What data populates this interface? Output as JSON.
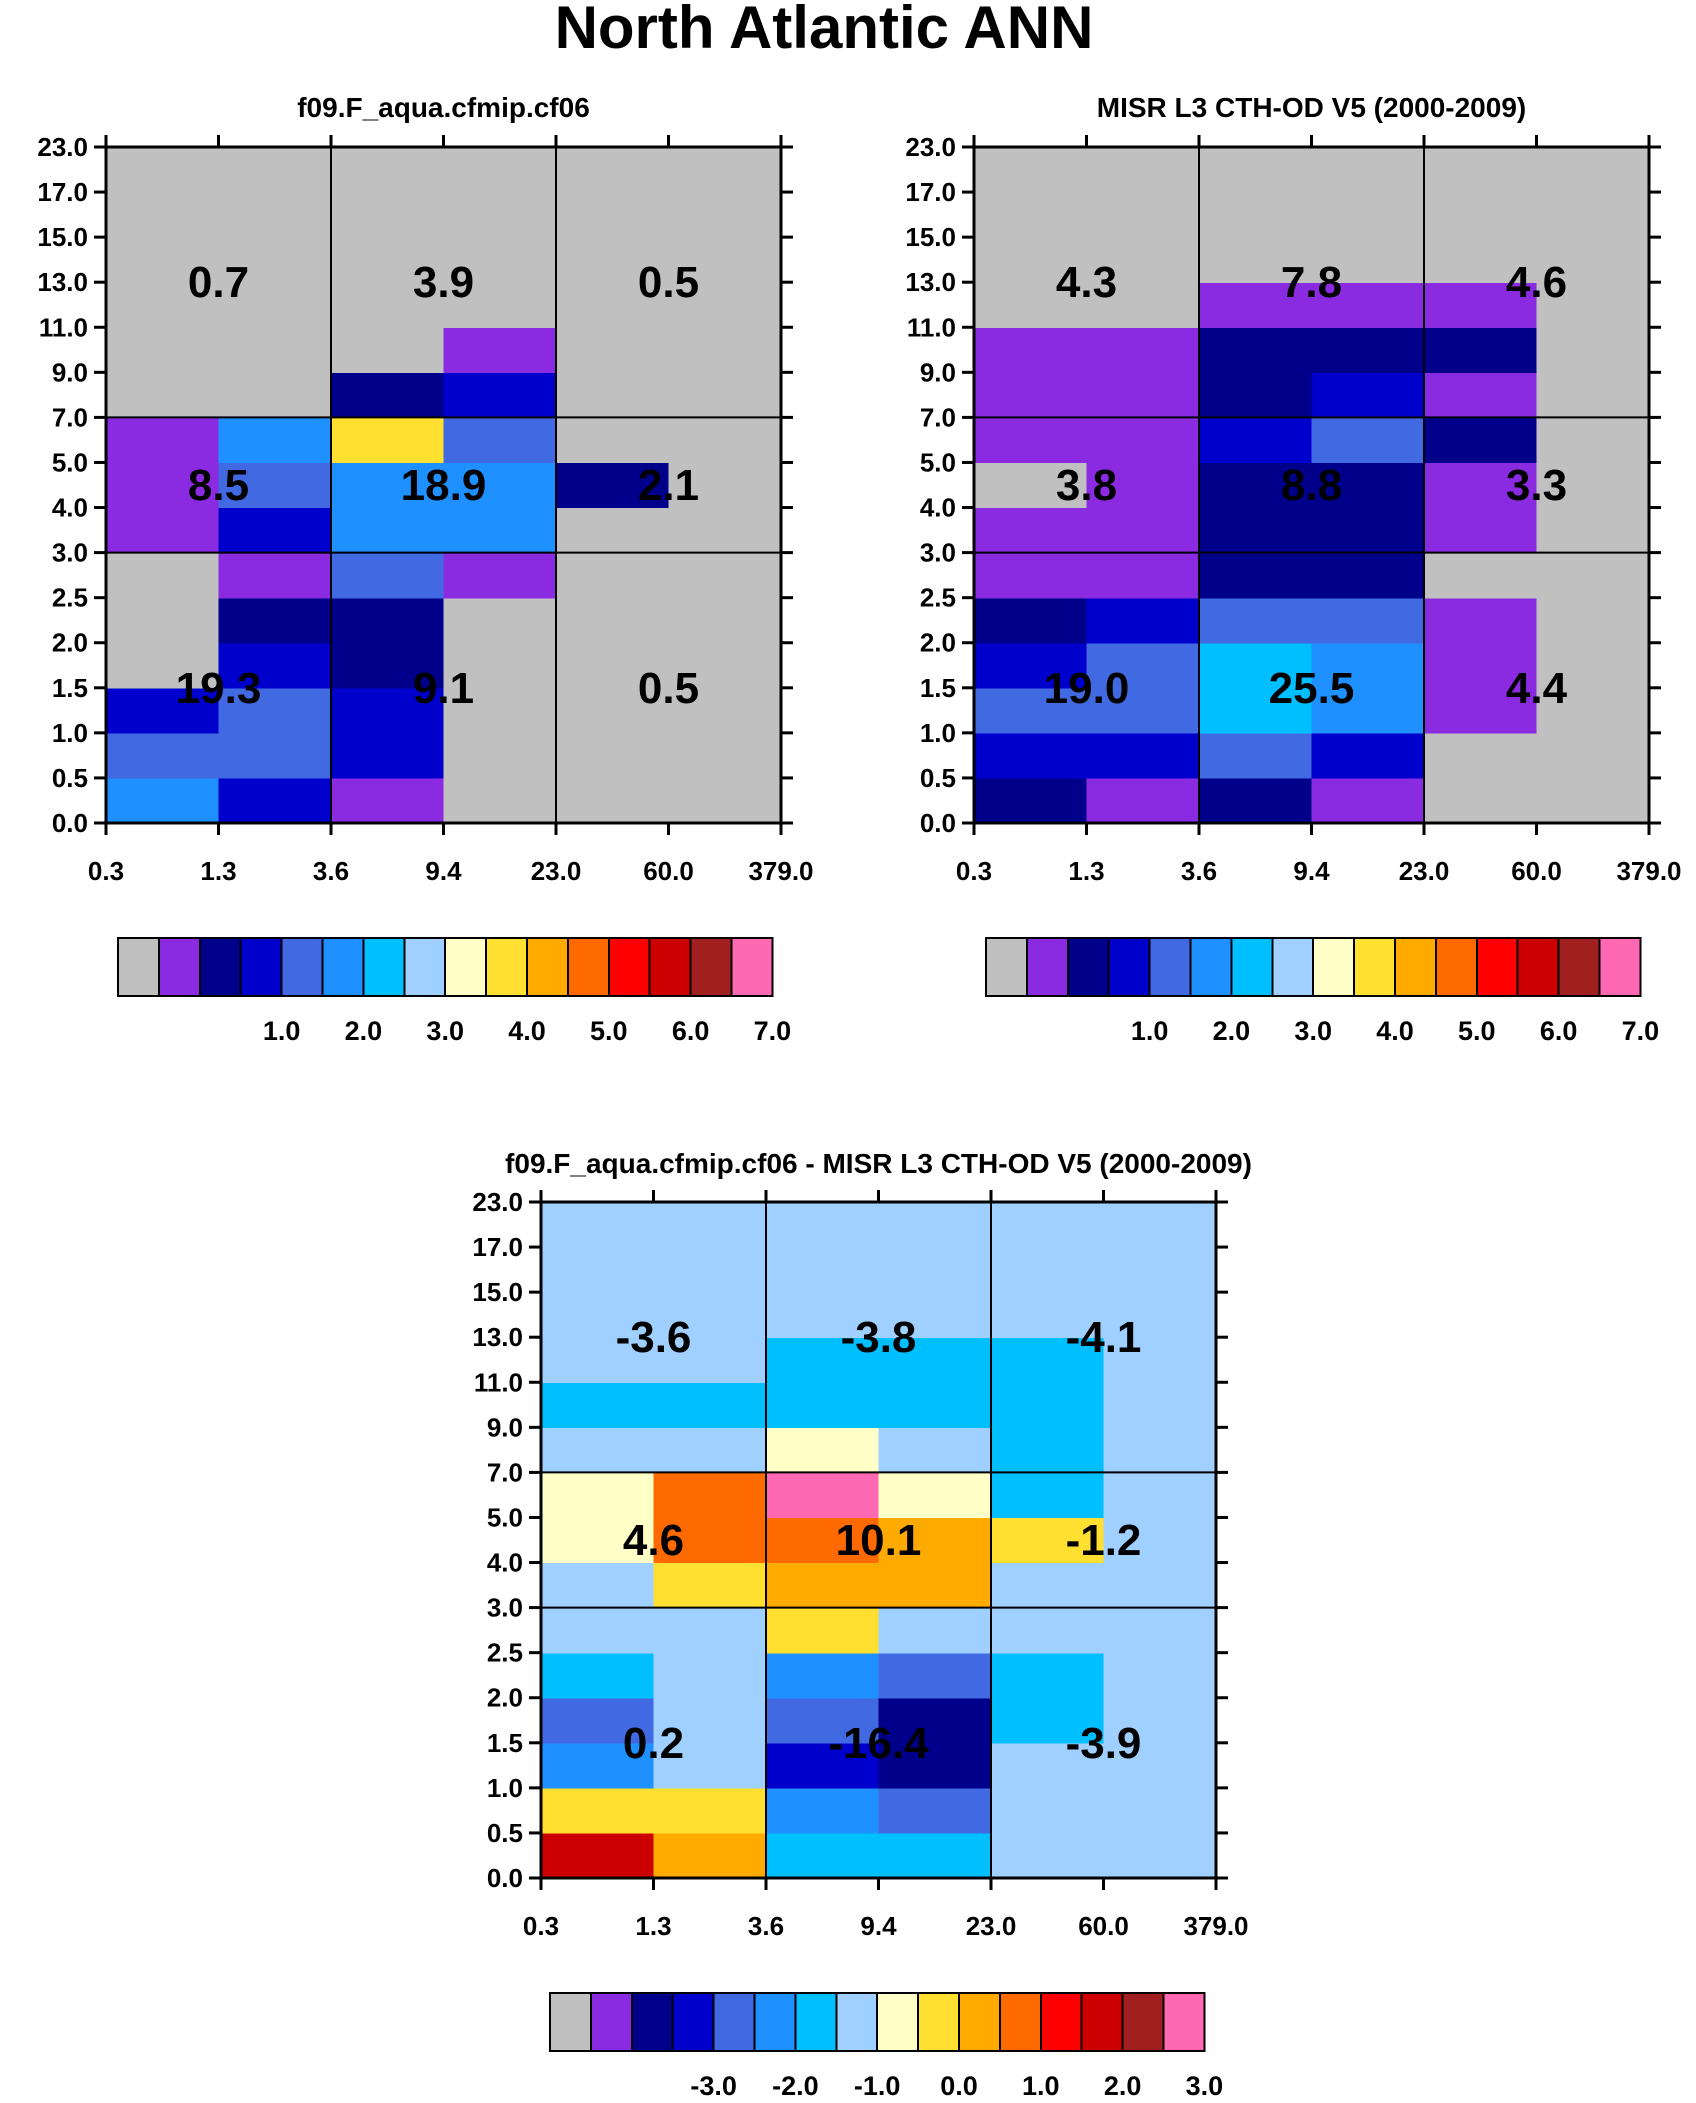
{
  "title": "North Atlantic ANN",
  "chart_data": [
    {
      "type": "heatmap",
      "name": "model",
      "title": "f09.F_aqua.cfmip.cf06",
      "x_edges": [
        "0.3",
        "1.3",
        "3.6",
        "9.4",
        "23.0",
        "60.0",
        "379.0"
      ],
      "y_edges": [
        "0.0",
        "0.5",
        "1.0",
        "1.5",
        "2.0",
        "2.5",
        "3.0",
        "4.0",
        "5.0",
        "7.0",
        "9.0",
        "11.0",
        "13.0",
        "15.0",
        "17.0",
        "23.0"
      ],
      "values": [
        [
          5,
          3,
          1,
          0,
          0,
          0
        ],
        [
          4,
          4,
          3,
          0,
          0,
          0
        ],
        [
          3,
          4,
          3,
          0,
          0,
          0
        ],
        [
          0,
          3,
          2,
          0,
          0,
          0
        ],
        [
          0,
          2,
          2,
          0,
          0,
          0
        ],
        [
          0,
          1,
          4,
          1,
          0,
          0
        ],
        [
          1,
          3,
          5,
          5,
          0,
          0
        ],
        [
          1,
          4,
          5,
          5,
          2,
          0
        ],
        [
          1,
          5,
          9,
          4,
          0,
          0
        ],
        [
          0,
          0,
          2,
          3,
          0,
          0
        ],
        [
          0,
          0,
          0,
          1,
          0,
          0
        ],
        [
          0,
          0,
          0,
          0,
          0,
          0
        ],
        [
          0,
          0,
          0,
          0,
          0,
          0
        ],
        [
          0,
          0,
          0,
          0,
          0,
          0
        ],
        [
          0,
          0,
          0,
          0,
          0,
          0
        ]
      ],
      "regions": [
        {
          "x": 1,
          "y": 0,
          "label": "19.3"
        },
        {
          "x": 3,
          "y": 0,
          "label": "9.1"
        },
        {
          "x": 5,
          "y": 0,
          "label": "0.5"
        },
        {
          "x": 1,
          "y": 1,
          "label": "8.5"
        },
        {
          "x": 3,
          "y": 1,
          "label": "18.9"
        },
        {
          "x": 5,
          "y": 1,
          "label": "2.1"
        },
        {
          "x": 1,
          "y": 2,
          "label": "0.7"
        },
        {
          "x": 3,
          "y": 2,
          "label": "3.9"
        },
        {
          "x": 5,
          "y": 2,
          "label": "0.5"
        }
      ],
      "colorbar_labels": [
        "1.0",
        "2.0",
        "3.0",
        "4.0",
        "5.0",
        "6.0",
        "7.0"
      ]
    },
    {
      "type": "heatmap",
      "name": "obs",
      "title": "MISR L3 CTH-OD V5 (2000-2009)",
      "x_edges": [
        "0.3",
        "1.3",
        "3.6",
        "9.4",
        "23.0",
        "60.0",
        "379.0"
      ],
      "y_edges": [
        "0.0",
        "0.5",
        "1.0",
        "1.5",
        "2.0",
        "2.5",
        "3.0",
        "4.0",
        "5.0",
        "7.0",
        "9.0",
        "11.0",
        "13.0",
        "15.0",
        "17.0",
        "23.0"
      ],
      "values": [
        [
          2,
          1,
          2,
          1,
          0,
          0
        ],
        [
          3,
          3,
          4,
          3,
          0,
          0
        ],
        [
          4,
          4,
          6,
          5,
          1,
          0
        ],
        [
          3,
          4,
          6,
          5,
          1,
          0
        ],
        [
          2,
          3,
          4,
          4,
          1,
          0
        ],
        [
          1,
          1,
          2,
          2,
          0,
          0
        ],
        [
          1,
          1,
          2,
          2,
          1,
          0
        ],
        [
          0,
          1,
          2,
          2,
          1,
          0
        ],
        [
          1,
          1,
          3,
          4,
          2,
          0
        ],
        [
          1,
          1,
          2,
          3,
          1,
          0
        ],
        [
          1,
          1,
          2,
          2,
          2,
          0
        ],
        [
          0,
          0,
          1,
          1,
          1,
          0
        ],
        [
          0,
          0,
          0,
          0,
          0,
          0
        ],
        [
          0,
          0,
          0,
          0,
          0,
          0
        ],
        [
          0,
          0,
          0,
          0,
          0,
          0
        ]
      ],
      "regions": [
        {
          "x": 1,
          "y": 0,
          "label": "19.0"
        },
        {
          "x": 3,
          "y": 0,
          "label": "25.5"
        },
        {
          "x": 5,
          "y": 0,
          "label": "4.4"
        },
        {
          "x": 1,
          "y": 1,
          "label": "3.8"
        },
        {
          "x": 3,
          "y": 1,
          "label": "8.8"
        },
        {
          "x": 5,
          "y": 1,
          "label": "3.3"
        },
        {
          "x": 1,
          "y": 2,
          "label": "4.3"
        },
        {
          "x": 3,
          "y": 2,
          "label": "7.8"
        },
        {
          "x": 5,
          "y": 2,
          "label": "4.6"
        }
      ],
      "colorbar_labels": [
        "1.0",
        "2.0",
        "3.0",
        "4.0",
        "5.0",
        "6.0",
        "7.0"
      ]
    },
    {
      "type": "heatmap",
      "name": "diff",
      "title": "f09.F_aqua.cfmip.cf06 - MISR L3 CTH-OD V5 (2000-2009)",
      "x_edges": [
        "0.3",
        "1.3",
        "3.6",
        "9.4",
        "23.0",
        "60.0",
        "379.0"
      ],
      "y_edges": [
        "0.0",
        "0.5",
        "1.0",
        "1.5",
        "2.0",
        "2.5",
        "3.0",
        "4.0",
        "5.0",
        "7.0",
        "9.0",
        "11.0",
        "13.0",
        "15.0",
        "17.0",
        "23.0"
      ],
      "values": [
        [
          13,
          10,
          6,
          6,
          7,
          7
        ],
        [
          9,
          9,
          5,
          4,
          7,
          7
        ],
        [
          5,
          7,
          3,
          2,
          7,
          7
        ],
        [
          4,
          7,
          4,
          2,
          6,
          7
        ],
        [
          6,
          7,
          5,
          4,
          6,
          7
        ],
        [
          7,
          7,
          9,
          7,
          7,
          7
        ],
        [
          7,
          9,
          10,
          10,
          7,
          7
        ],
        [
          8,
          11,
          11,
          10,
          9,
          7
        ],
        [
          8,
          11,
          15,
          8,
          6,
          7
        ],
        [
          7,
          7,
          8,
          7,
          6,
          7
        ],
        [
          6,
          6,
          6,
          6,
          6,
          7
        ],
        [
          7,
          7,
          6,
          6,
          6,
          7
        ],
        [
          7,
          7,
          7,
          7,
          7,
          7
        ],
        [
          7,
          7,
          7,
          7,
          7,
          7
        ],
        [
          7,
          7,
          7,
          7,
          7,
          7
        ]
      ],
      "regions": [
        {
          "x": 1,
          "y": 0,
          "label": "0.2"
        },
        {
          "x": 3,
          "y": 0,
          "label": "-16.4"
        },
        {
          "x": 5,
          "y": 0,
          "label": "-3.9"
        },
        {
          "x": 1,
          "y": 1,
          "label": "4.6"
        },
        {
          "x": 3,
          "y": 1,
          "label": "10.1"
        },
        {
          "x": 5,
          "y": 1,
          "label": "-1.2"
        },
        {
          "x": 1,
          "y": 2,
          "label": "-3.6"
        },
        {
          "x": 3,
          "y": 2,
          "label": "-3.8"
        },
        {
          "x": 5,
          "y": 2,
          "label": "-4.1"
        }
      ],
      "colorbar_labels": [
        "-3.0",
        "-2.0",
        "-1.0",
        "0.0",
        "1.0",
        "2.0",
        "3.0"
      ]
    }
  ],
  "palette": [
    "#c0c0c0",
    "#8a2be2",
    "#00008b",
    "#0000cd",
    "#4169e1",
    "#1e90ff",
    "#00bfff",
    "#a0d0ff",
    "#ffffc8",
    "#ffdf30",
    "#ffaa00",
    "#ff6a00",
    "#ff0000",
    "#cc0000",
    "#a02020",
    "#ff69b4"
  ]
}
